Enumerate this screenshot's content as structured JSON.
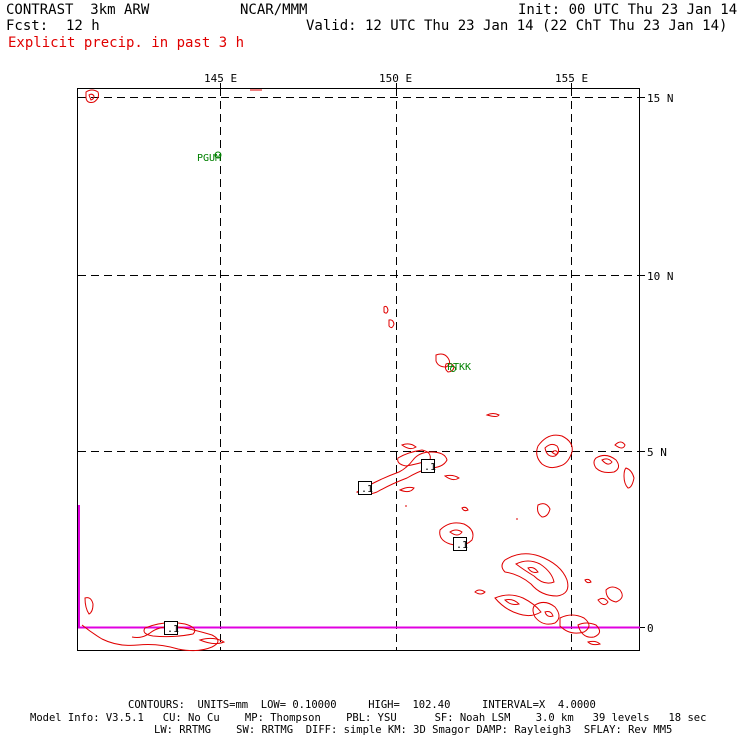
{
  "header": {
    "model": "CONTRAST  3km ARW",
    "org": "NCAR/MMM",
    "init": "Init: 00 UTC Thu 23 Jan 14",
    "fcst_label": "Fcst:",
    "fcst_value": "12 h",
    "valid": "Valid: 12 UTC Thu 23 Jan 14 (22 ChT Thu 23 Jan 14)",
    "field": "Explicit precip. in past 3 h"
  },
  "map": {
    "lon_labels": [
      "145 E",
      "150 E",
      "155 E"
    ],
    "lat_labels": [
      "15 N",
      "10 N",
      "5 N",
      "0"
    ],
    "stations": [
      {
        "id": "PGUM",
        "lon": 144.8,
        "lat": 13.5
      },
      {
        "id": "PTKK",
        "lon": 151.85,
        "lat": 7.45
      }
    ],
    "box_labels": [
      ".1",
      ".1",
      ".1",
      ".1"
    ],
    "colors": {
      "contour": "#e00000",
      "grid": "#000000",
      "boundary": "#e000e0",
      "station": "#008000"
    }
  },
  "footer": {
    "contours": "CONTOURS:  UNITS=mm  LOW= 0.10000     HIGH=  102.40     INTERVAL=X  4.0000",
    "model_info_1": "Model Info: V3.5.1   CU: No Cu    MP: Thompson    PBL: YSU      SF: Noah LSM    3.0 km   39 levels   18 sec",
    "model_info_2": "LW: RRTMG    SW: RRTMG  DIFF: simple KM: 3D Smagor DAMP: Rayleigh3  SFLAY: Rev MM5"
  }
}
